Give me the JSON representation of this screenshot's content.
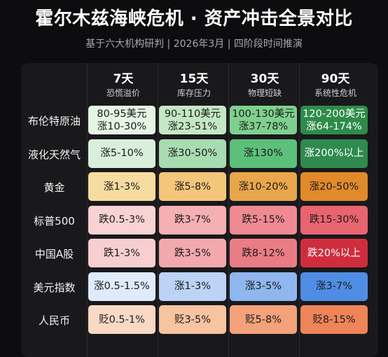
{
  "title": "霍尔木兹海峡危机 · 资产冲击全景对比",
  "subtitle": "基于六大机构研判 | 2026年3月 | 四阶段时间推演",
  "chart_data": {
    "type": "table",
    "columns": [
      {
        "day": "7天",
        "stage": "恐慌溢价"
      },
      {
        "day": "15天",
        "stage": "库存压力"
      },
      {
        "day": "30天",
        "stage": "物理短缺"
      },
      {
        "day": "90天",
        "stage": "系统性危机"
      }
    ],
    "rows": [
      {
        "label": "布伦特原油",
        "cells": [
          [
            "80-95美元",
            "涨10-30%"
          ],
          [
            "90-110美元",
            "涨23-51%"
          ],
          [
            "100-130美元",
            "涨37-78%"
          ],
          [
            "120-200美元",
            "涨64-174%"
          ]
        ]
      },
      {
        "label": "液化天然气",
        "cells": [
          [
            "涨5-10%"
          ],
          [
            "涨30-50%"
          ],
          [
            "涨130%"
          ],
          [
            "涨200%以上"
          ]
        ]
      },
      {
        "label": "黄金",
        "cells": [
          [
            "涨1-3%"
          ],
          [
            "涨5-8%"
          ],
          [
            "涨10-20%"
          ],
          [
            "涨20-50%"
          ]
        ]
      },
      {
        "label": "标普500",
        "cells": [
          [
            "跌0.5-3%"
          ],
          [
            "跌3-7%"
          ],
          [
            "跌5-15%"
          ],
          [
            "跌15-30%"
          ]
        ]
      },
      {
        "label": "中国A股",
        "cells": [
          [
            "跌1-3%"
          ],
          [
            "跌3-5%"
          ],
          [
            "跌8-12%"
          ],
          [
            "跌20%以上"
          ]
        ]
      },
      {
        "label": "美元指数",
        "cells": [
          [
            "涨0.5-1.5%"
          ],
          [
            "涨1-3%"
          ],
          [
            "涨3-5%"
          ],
          [
            "涨3-7%"
          ]
        ]
      },
      {
        "label": "人民币",
        "cells": [
          [
            "贬0.5-1%"
          ],
          [
            "贬3-5%"
          ],
          [
            "贬5-8%"
          ],
          [
            "贬8-15%"
          ]
        ]
      }
    ],
    "colors": [
      [
        "#e6f4e4",
        "#c5e8c4",
        "#7fd08e",
        "#2e8b4a"
      ],
      [
        "#d9efdb",
        "#a8dcb0",
        "#5cc07a",
        "#2f8a4e"
      ],
      [
        "#f7dca0",
        "#f3c67a",
        "#e9a64b",
        "#e08a2a"
      ],
      [
        "#f9d3d3",
        "#f5b0b3",
        "#ef8a92",
        "#e86470"
      ],
      [
        "#f8cfd1",
        "#f3a8ae",
        "#ea7c86",
        "#cf2d3e"
      ],
      [
        "#dfeafb",
        "#bcd3f6",
        "#8fb6ef",
        "#4f8de4"
      ],
      [
        "#f9d9c3",
        "#f7c3a0",
        "#f3a27a",
        "#ef8458"
      ]
    ],
    "light_text": [
      [
        false,
        false,
        false,
        true
      ],
      [
        false,
        false,
        false,
        true
      ],
      [
        false,
        false,
        false,
        false
      ],
      [
        false,
        false,
        false,
        false
      ],
      [
        false,
        false,
        false,
        true
      ],
      [
        false,
        false,
        false,
        false
      ],
      [
        false,
        false,
        false,
        false
      ]
    ]
  }
}
